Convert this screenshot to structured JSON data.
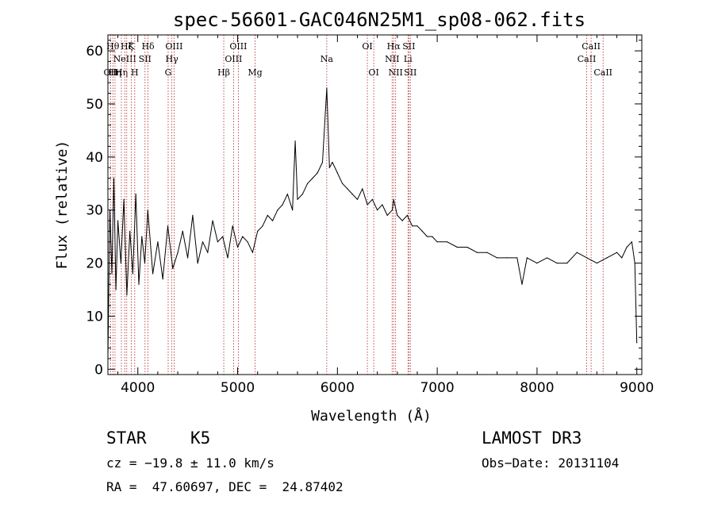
{
  "chart_data": {
    "type": "line",
    "title": "spec-56601-GAC046N25M1_sp08-062.fits",
    "xlabel": "Wavelength (Å)",
    "ylabel": "Flux (relative)",
    "xlim": [
      3700,
      9050
    ],
    "ylim": [
      -1,
      63
    ],
    "xticks": [
      4000,
      5000,
      6000,
      7000,
      8000,
      9000
    ],
    "xtick_labels": [
      "4000",
      "5000",
      "6000",
      "7000",
      "8000",
      "9000"
    ],
    "yticks": [
      0,
      10,
      20,
      30,
      40,
      50,
      60
    ],
    "ytick_labels": [
      "0",
      "10",
      "20",
      "30",
      "40",
      "50",
      "60"
    ],
    "line_color": "#b22222",
    "series": [
      {
        "name": "flux",
        "color": "#000000",
        "x": [
          3700,
          3720,
          3740,
          3760,
          3780,
          3800,
          3830,
          3860,
          3890,
          3920,
          3950,
          3980,
          4010,
          4040,
          4070,
          4100,
          4150,
          4200,
          4250,
          4300,
          4350,
          4400,
          4450,
          4500,
          4550,
          4600,
          4650,
          4700,
          4750,
          4800,
          4850,
          4900,
          4950,
          5000,
          5050,
          5100,
          5150,
          5200,
          5250,
          5300,
          5350,
          5400,
          5450,
          5500,
          5550,
          5577,
          5600,
          5650,
          5700,
          5750,
          5800,
          5850,
          5893,
          5920,
          5950,
          6000,
          6050,
          6100,
          6150,
          6200,
          6250,
          6300,
          6350,
          6400,
          6450,
          6500,
          6550,
          6563,
          6600,
          6650,
          6700,
          6750,
          6800,
          6850,
          6900,
          6950,
          7000,
          7100,
          7200,
          7300,
          7400,
          7500,
          7600,
          7700,
          7800,
          7850,
          7900,
          8000,
          8100,
          8200,
          8300,
          8400,
          8500,
          8600,
          8700,
          8800,
          8850,
          8900,
          8950,
          8980,
          9000
        ],
        "y": [
          2,
          30,
          18,
          36,
          15,
          28,
          20,
          32,
          14,
          26,
          18,
          33,
          16,
          25,
          20,
          30,
          18,
          24,
          17,
          27,
          19,
          22,
          26,
          21,
          29,
          20,
          24,
          22,
          28,
          24,
          25,
          21,
          27,
          23,
          25,
          24,
          22,
          26,
          27,
          29,
          28,
          30,
          31,
          33,
          30,
          43,
          32,
          33,
          35,
          36,
          37,
          39,
          53,
          38,
          39,
          37,
          35,
          34,
          33,
          32,
          34,
          31,
          32,
          30,
          31,
          29,
          30,
          32,
          29,
          28,
          29,
          27,
          27,
          26,
          25,
          25,
          24,
          24,
          23,
          23,
          22,
          22,
          21,
          21,
          21,
          16,
          21,
          20,
          21,
          20,
          20,
          22,
          21,
          20,
          21,
          22,
          21,
          23,
          24,
          20,
          5
        ]
      }
    ],
    "lines": [
      {
        "wl": 3727,
        "label": "OII",
        "row": 2
      },
      {
        "wl": 3750,
        "label": "Hθ",
        "row": 0
      },
      {
        "wl": 3771,
        "label": "Hη",
        "row": 2
      },
      {
        "wl": 3835,
        "label": "Hη",
        "row": 2
      },
      {
        "wl": 3869,
        "label": "NeIII",
        "row": 1
      },
      {
        "wl": 3889,
        "label": "Hζ",
        "row": 0
      },
      {
        "wl": 3934,
        "label": "K",
        "row": 0
      },
      {
        "wl": 3969,
        "label": "H",
        "row": 2
      },
      {
        "wl": 4072,
        "label": "SII",
        "row": 1
      },
      {
        "wl": 4102,
        "label": "Hδ",
        "row": 0
      },
      {
        "wl": 4304,
        "label": "G",
        "row": 2
      },
      {
        "wl": 4341,
        "label": "Hγ",
        "row": 1
      },
      {
        "wl": 4363,
        "label": "OIII",
        "row": 0
      },
      {
        "wl": 4861,
        "label": "Hβ",
        "row": 2
      },
      {
        "wl": 4959,
        "label": "OIII",
        "row": 1
      },
      {
        "wl": 5007,
        "label": "OIII",
        "row": 0
      },
      {
        "wl": 5175,
        "label": "Mg",
        "row": 2
      },
      {
        "wl": 5893,
        "label": "Na",
        "row": 1
      },
      {
        "wl": 6300,
        "label": "OI",
        "row": 0
      },
      {
        "wl": 6364,
        "label": "OI",
        "row": 2
      },
      {
        "wl": 6548,
        "label": "NII",
        "row": 1
      },
      {
        "wl": 6563,
        "label": "Hα",
        "row": 0
      },
      {
        "wl": 6583,
        "label": "NII",
        "row": 2
      },
      {
        "wl": 6707,
        "label": "Li",
        "row": 1
      },
      {
        "wl": 6716,
        "label": "SII",
        "row": 0
      },
      {
        "wl": 6731,
        "label": "SII",
        "row": 2
      },
      {
        "wl": 8498,
        "label": "CaII",
        "row": 1
      },
      {
        "wl": 8542,
        "label": "CaII",
        "row": 0
      },
      {
        "wl": 8662,
        "label": "CaII",
        "row": 2
      }
    ]
  },
  "info": {
    "class": "STAR",
    "subclass": "K5",
    "survey": "LAMOST DR3",
    "cz": "cz = −19.8 ± 11.0 km/s",
    "obs_date": "Obs−Date: 20131104",
    "coords": "RA =  47.60697, DEC =  24.87402"
  }
}
